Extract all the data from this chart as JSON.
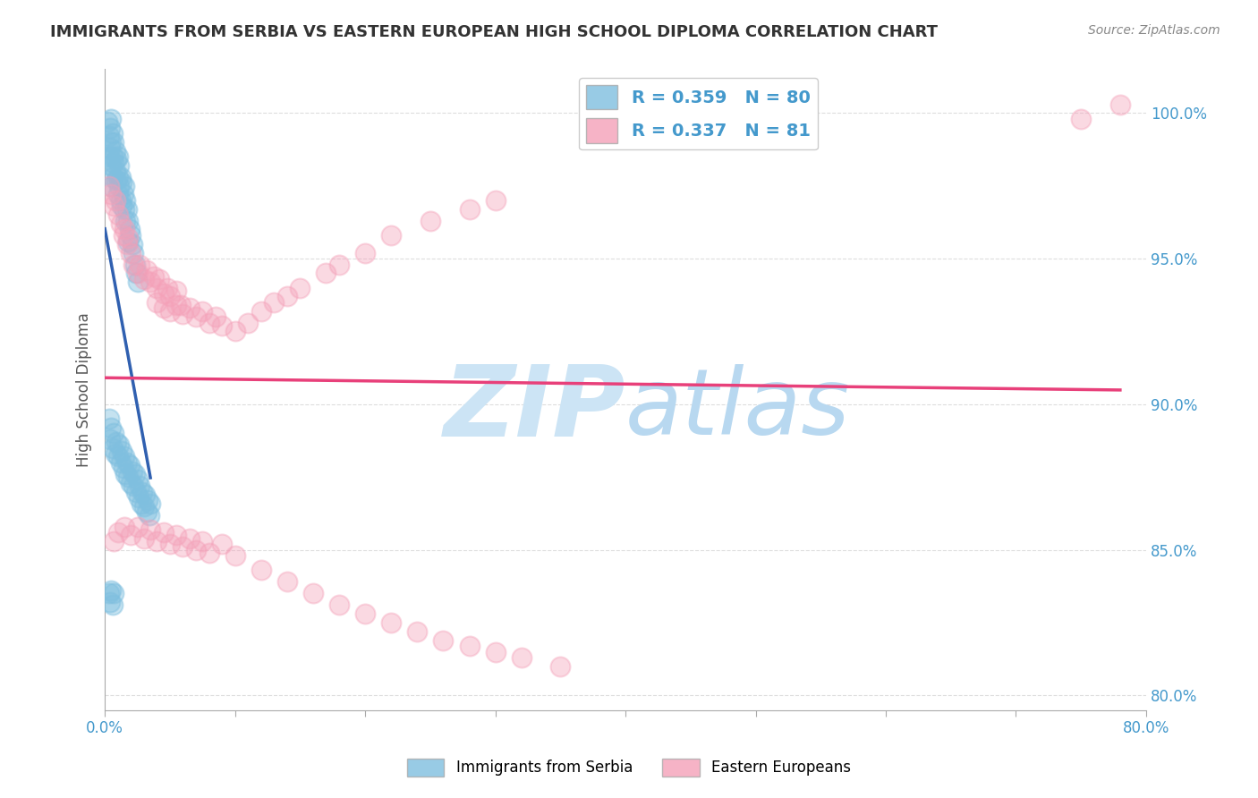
{
  "title": "IMMIGRANTS FROM SERBIA VS EASTERN EUROPEAN HIGH SCHOOL DIPLOMA CORRELATION CHART",
  "source": "Source: ZipAtlas.com",
  "ylabel": "High School Diploma",
  "yticks_labels": [
    "100.0%",
    "95.0%",
    "90.0%",
    "85.0%",
    "80.0%"
  ],
  "ytick_vals": [
    1.0,
    0.95,
    0.9,
    0.85,
    0.8
  ],
  "xlim": [
    0.0,
    0.8
  ],
  "ylim": [
    0.795,
    1.015
  ],
  "blue_R": 0.359,
  "blue_N": 80,
  "pink_R": 0.337,
  "pink_N": 81,
  "blue_color": "#7fbfdf",
  "pink_color": "#f4a0b8",
  "blue_line_color": "#3060b0",
  "pink_line_color": "#e8407a",
  "watermark_zip": "ZIP",
  "watermark_atlas": "atlas",
  "watermark_color_zip": "#cce4f5",
  "watermark_color_atlas": "#b8d4e8",
  "legend_blue": "Immigrants from Serbia",
  "legend_pink": "Eastern Europeans",
  "blue_x": [
    0.002,
    0.003,
    0.003,
    0.004,
    0.004,
    0.005,
    0.005,
    0.005,
    0.005,
    0.006,
    0.006,
    0.006,
    0.007,
    0.007,
    0.008,
    0.008,
    0.009,
    0.009,
    0.01,
    0.01,
    0.01,
    0.011,
    0.011,
    0.012,
    0.012,
    0.013,
    0.013,
    0.014,
    0.015,
    0.015,
    0.016,
    0.016,
    0.017,
    0.018,
    0.018,
    0.019,
    0.02,
    0.021,
    0.022,
    0.023,
    0.024,
    0.025,
    0.003,
    0.004,
    0.005,
    0.006,
    0.007,
    0.008,
    0.009,
    0.01,
    0.011,
    0.012,
    0.013,
    0.014,
    0.015,
    0.016,
    0.017,
    0.018,
    0.019,
    0.02,
    0.021,
    0.022,
    0.023,
    0.024,
    0.025,
    0.026,
    0.027,
    0.028,
    0.029,
    0.03,
    0.031,
    0.032,
    0.033,
    0.034,
    0.035,
    0.003,
    0.004,
    0.005,
    0.006,
    0.007
  ],
  "blue_y": [
    0.997,
    0.992,
    0.985,
    0.995,
    0.988,
    0.998,
    0.99,
    0.982,
    0.975,
    0.993,
    0.985,
    0.978,
    0.99,
    0.983,
    0.987,
    0.98,
    0.984,
    0.977,
    0.985,
    0.978,
    0.972,
    0.982,
    0.975,
    0.978,
    0.97,
    0.976,
    0.968,
    0.972,
    0.975,
    0.967,
    0.97,
    0.963,
    0.967,
    0.963,
    0.956,
    0.96,
    0.958,
    0.955,
    0.952,
    0.948,
    0.945,
    0.942,
    0.895,
    0.888,
    0.892,
    0.885,
    0.89,
    0.883,
    0.887,
    0.882,
    0.886,
    0.88,
    0.884,
    0.878,
    0.882,
    0.876,
    0.88,
    0.875,
    0.879,
    0.873,
    0.877,
    0.872,
    0.876,
    0.87,
    0.874,
    0.868,
    0.872,
    0.866,
    0.87,
    0.865,
    0.869,
    0.863,
    0.867,
    0.862,
    0.866,
    0.835,
    0.832,
    0.836,
    0.831,
    0.835
  ],
  "pink_x": [
    0.003,
    0.005,
    0.007,
    0.008,
    0.01,
    0.012,
    0.014,
    0.015,
    0.017,
    0.018,
    0.02,
    0.022,
    0.025,
    0.027,
    0.03,
    0.032,
    0.035,
    0.038,
    0.04,
    0.042,
    0.045,
    0.048,
    0.05,
    0.055,
    0.058,
    0.04,
    0.045,
    0.05,
    0.055,
    0.06,
    0.065,
    0.07,
    0.075,
    0.08,
    0.085,
    0.09,
    0.1,
    0.11,
    0.12,
    0.13,
    0.14,
    0.15,
    0.17,
    0.18,
    0.2,
    0.22,
    0.25,
    0.28,
    0.3,
    0.007,
    0.01,
    0.015,
    0.02,
    0.025,
    0.03,
    0.035,
    0.04,
    0.045,
    0.05,
    0.055,
    0.06,
    0.065,
    0.07,
    0.075,
    0.08,
    0.09,
    0.1,
    0.12,
    0.14,
    0.16,
    0.18,
    0.2,
    0.22,
    0.24,
    0.26,
    0.28,
    0.3,
    0.32,
    0.35,
    0.75,
    0.78
  ],
  "pink_y": [
    0.975,
    0.972,
    0.968,
    0.97,
    0.965,
    0.962,
    0.958,
    0.96,
    0.955,
    0.957,
    0.952,
    0.948,
    0.945,
    0.948,
    0.943,
    0.946,
    0.942,
    0.944,
    0.94,
    0.943,
    0.938,
    0.94,
    0.937,
    0.939,
    0.934,
    0.935,
    0.933,
    0.932,
    0.934,
    0.931,
    0.933,
    0.93,
    0.932,
    0.928,
    0.93,
    0.927,
    0.925,
    0.928,
    0.932,
    0.935,
    0.937,
    0.94,
    0.945,
    0.948,
    0.952,
    0.958,
    0.963,
    0.967,
    0.97,
    0.853,
    0.856,
    0.858,
    0.855,
    0.858,
    0.854,
    0.857,
    0.853,
    0.856,
    0.852,
    0.855,
    0.851,
    0.854,
    0.85,
    0.853,
    0.849,
    0.852,
    0.848,
    0.843,
    0.839,
    0.835,
    0.831,
    0.828,
    0.825,
    0.822,
    0.819,
    0.817,
    0.815,
    0.813,
    0.81,
    0.998,
    1.003
  ]
}
